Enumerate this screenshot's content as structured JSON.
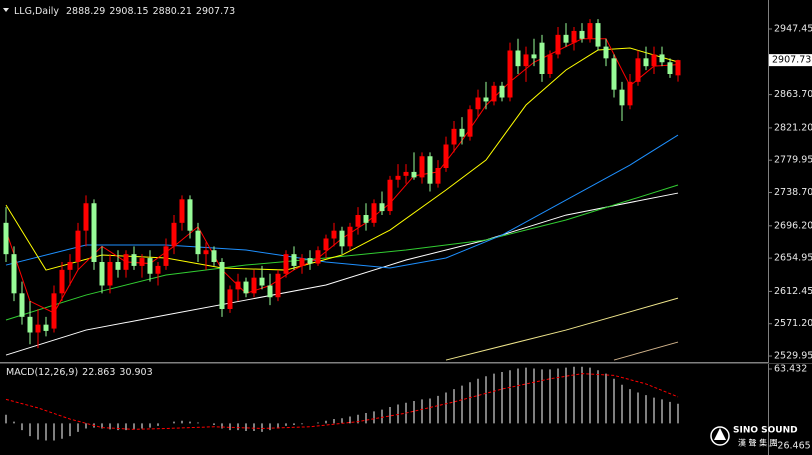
{
  "chart_data": {
    "type": "candlestick",
    "symbol": "LLG,Daily",
    "up_color": "#ff0000",
    "down_color": "#98fb98",
    "open": [
      2700,
      2660,
      2610,
      2580,
      2560,
      2570,
      2565,
      2610,
      2640,
      2650,
      2690,
      2725,
      2650,
      2620,
      2650,
      2640,
      2660,
      2645,
      2655,
      2635,
      2645,
      2670,
      2700,
      2730,
      2690,
      2660,
      2665,
      2650,
      2590,
      2615,
      2625,
      2610,
      2630,
      2620,
      2605,
      2635,
      2660,
      2645,
      2655,
      2648,
      2665,
      2680,
      2690,
      2670,
      2695,
      2710,
      2700,
      2725,
      2715,
      2755,
      2760,
      2765,
      2758,
      2785,
      2750,
      2770,
      2800,
      2820,
      2810,
      2845,
      2860,
      2855,
      2875,
      2860,
      2920,
      2900,
      2915,
      2930,
      2890,
      2915,
      2940,
      2930,
      2945,
      2935,
      2955,
      2925,
      2910,
      2870,
      2850,
      2880,
      2910,
      2900,
      2915,
      2905,
      2888.29
    ],
    "high": [
      2720,
      2670,
      2625,
      2600,
      2590,
      2580,
      2620,
      2650,
      2660,
      2700,
      2735,
      2730,
      2670,
      2660,
      2665,
      2665,
      2670,
      2660,
      2665,
      2650,
      2680,
      2710,
      2735,
      2735,
      2700,
      2675,
      2670,
      2655,
      2620,
      2635,
      2630,
      2640,
      2645,
      2635,
      2640,
      2665,
      2670,
      2660,
      2665,
      2670,
      2685,
      2700,
      2695,
      2700,
      2720,
      2725,
      2730,
      2740,
      2760,
      2775,
      2775,
      2790,
      2790,
      2790,
      2780,
      2810,
      2830,
      2835,
      2850,
      2870,
      2880,
      2880,
      2880,
      2930,
      2935,
      2925,
      2935,
      2940,
      2920,
      2950,
      2955,
      2950,
      2955,
      2960,
      2960,
      2935,
      2915,
      2880,
      2890,
      2920,
      2925,
      2925,
      2925,
      2910,
      2908.15
    ],
    "low": [
      2650,
      2600,
      2570,
      2545,
      2540,
      2555,
      2560,
      2600,
      2620,
      2640,
      2670,
      2640,
      2610,
      2610,
      2630,
      2630,
      2640,
      2630,
      2625,
      2620,
      2640,
      2660,
      2690,
      2680,
      2650,
      2640,
      2645,
      2580,
      2585,
      2600,
      2605,
      2605,
      2615,
      2595,
      2600,
      2630,
      2640,
      2635,
      2640,
      2645,
      2655,
      2670,
      2660,
      2665,
      2685,
      2690,
      2695,
      2710,
      2710,
      2745,
      2750,
      2755,
      2750,
      2740,
      2745,
      2765,
      2790,
      2800,
      2805,
      2835,
      2845,
      2850,
      2855,
      2855,
      2890,
      2880,
      2900,
      2880,
      2885,
      2910,
      2925,
      2920,
      2930,
      2930,
      2920,
      2900,
      2860,
      2830,
      2845,
      2875,
      2895,
      2890,
      2900,
      2885,
      2880.21
    ],
    "close": [
      2660,
      2610,
      2580,
      2560,
      2570,
      2562,
      2610,
      2640,
      2650,
      2690,
      2725,
      2650,
      2620,
      2650,
      2640,
      2660,
      2645,
      2655,
      2635,
      2645,
      2670,
      2700,
      2730,
      2690,
      2660,
      2665,
      2650,
      2590,
      2615,
      2625,
      2610,
      2630,
      2620,
      2605,
      2635,
      2660,
      2645,
      2655,
      2648,
      2665,
      2680,
      2690,
      2670,
      2695,
      2710,
      2700,
      2725,
      2715,
      2755,
      2760,
      2765,
      2758,
      2785,
      2750,
      2770,
      2800,
      2820,
      2810,
      2845,
      2860,
      2855,
      2875,
      2860,
      2920,
      2900,
      2915,
      2910,
      2890,
      2915,
      2940,
      2930,
      2945,
      2935,
      2955,
      2925,
      2910,
      2870,
      2850,
      2880,
      2910,
      2900,
      2915,
      2905,
      2890,
      2907.73
    ],
    "ylim": [
      2523.6,
      2978.1
    ],
    "yticks": [
      {
        "value": 2947.45,
        "label": "2947.45"
      },
      {
        "value": 2863.7,
        "label": "2863.70"
      },
      {
        "value": 2821.2,
        "label": "2821.20"
      },
      {
        "value": 2779.95,
        "label": "2779.95"
      },
      {
        "value": 2738.7,
        "label": "2738.70"
      },
      {
        "value": 2696.2,
        "label": "2696.20"
      },
      {
        "value": 2654.95,
        "label": "2654.95"
      },
      {
        "value": 2612.45,
        "label": "2612.45"
      },
      {
        "value": 2571.2,
        "label": "2571.20"
      },
      {
        "value": 2529.95,
        "label": "2529.95"
      }
    ],
    "lines": [
      {
        "color": "#ffffff",
        "x": [
          0,
          10,
          20,
          30,
          40,
          50,
          60,
          70,
          84
        ],
        "values": [
          2531.2,
          2563.1,
          2582.3,
          2601.4,
          2620.6,
          2652.5,
          2678.1,
          2709.9,
          2738.0
        ]
      },
      {
        "color": "#32cd32",
        "x": [
          0,
          10,
          20,
          30,
          40,
          50,
          60,
          70,
          78,
          84
        ],
        "values": [
          2575.9,
          2607.8,
          2633.4,
          2646.1,
          2655.1,
          2665.3,
          2678.1,
          2703.6,
          2729.1,
          2748.3
        ]
      },
      {
        "color": "#1e90ff",
        "x": [
          0,
          10,
          20,
          30,
          40,
          48,
          55,
          62,
          70,
          78,
          84
        ],
        "values": [
          2646.1,
          2671.7,
          2671.7,
          2665.3,
          2650,
          2642.3,
          2655.1,
          2684.4,
          2729.1,
          2773.8,
          2812.1
        ]
      },
      {
        "color": "#f0e68c",
        "x": [
          55,
          70,
          84
        ],
        "values": [
          2524.8,
          2563.1,
          2603.9
        ]
      },
      {
        "color": "#d2b48c",
        "x": [
          76,
          84
        ],
        "values": [
          2524.8,
          2547.8
        ]
      },
      {
        "color": "#ffff00",
        "x": [
          0,
          5,
          12,
          20,
          27,
          35,
          42,
          48,
          55,
          60,
          65,
          70,
          74,
          78,
          84
        ],
        "values": [
          2722.7,
          2639.7,
          2658.9,
          2655.1,
          2642.3,
          2639.7,
          2658.9,
          2690.8,
          2741.9,
          2780.2,
          2850.4,
          2895.1,
          2920.6,
          2923.2,
          2905.3
        ]
      },
      {
        "color": "#ff0000",
        "x": [
          0,
          3,
          6,
          9,
          12,
          15,
          18,
          21,
          24,
          27,
          30,
          33,
          36,
          39,
          42,
          45,
          48,
          51,
          54,
          57,
          60,
          63,
          66,
          69,
          72,
          75,
          78,
          81,
          84
        ],
        "values": [
          2690,
          2600,
          2585,
          2640,
          2670,
          2650,
          2648,
          2670,
          2695,
          2640,
          2610,
          2620,
          2640,
          2655,
          2680,
          2700,
          2725,
          2760,
          2765,
          2805,
          2850,
          2880,
          2905,
          2920,
          2935,
          2935,
          2875,
          2900,
          2902
        ]
      }
    ],
    "macd": {
      "title": "MACD(12,26,9)",
      "histogram_color": "#ffffff",
      "histogram": [
        10,
        2,
        -8,
        -15,
        -19,
        -20,
        -20,
        -18,
        -15,
        -10,
        -6,
        -5,
        -6,
        -7,
        -8,
        -8,
        -7,
        -6,
        -5,
        -3,
        0,
        2,
        3,
        2,
        1,
        0,
        -2,
        -6,
        -8,
        -8,
        -9,
        -9,
        -10,
        -8,
        -6,
        -3,
        -2,
        -1,
        0,
        1,
        3,
        5,
        6,
        8,
        10,
        12,
        14,
        16,
        19,
        22,
        24,
        26,
        28,
        29,
        32,
        36,
        40,
        44,
        48,
        52,
        55,
        58,
        60,
        62,
        64,
        65,
        64,
        63,
        63,
        64,
        65,
        66,
        66,
        65,
        62,
        58,
        52,
        45,
        40,
        36,
        33,
        30,
        28,
        25,
        22.863
      ],
      "signal": {
        "color": "#ff0000",
        "x": [
          0,
          4,
          8,
          12,
          16,
          20,
          26,
          32,
          38,
          44,
          50,
          56,
          62,
          68,
          72,
          76,
          80,
          84
        ],
        "values": [
          28,
          18,
          5,
          -5,
          -7,
          -6,
          -4,
          -6,
          -4,
          2,
          12,
          25,
          40,
          52,
          58,
          56,
          46,
          30.903
        ]
      },
      "ylim": [
        -33.47,
        69.27
      ],
      "yticks": [
        63.432,
        -26.465
      ]
    },
    "watermark": {
      "name": "SINO SOUND",
      "subtitle": "漢 聲 集 團"
    }
  }
}
